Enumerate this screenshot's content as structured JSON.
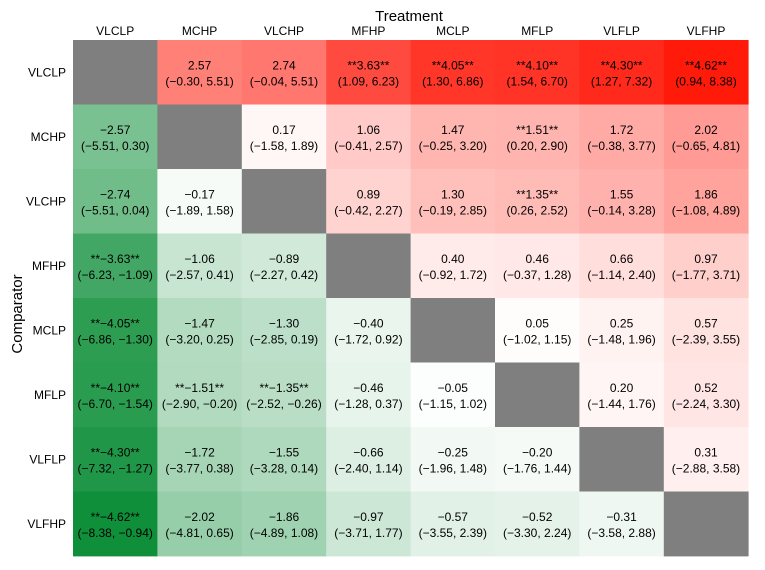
{
  "chart_data": {
    "type": "heatmap",
    "xlabel": "Treatment",
    "ylabel": "Comparator",
    "columns": [
      "VLCLP",
      "MCHP",
      "VLCHP",
      "MFHP",
      "MCLP",
      "MFLP",
      "VLFLP",
      "VLFHP"
    ],
    "rows": [
      "VLCLP",
      "MCHP",
      "VLCHP",
      "MFHP",
      "MCLP",
      "MFLP",
      "VLFLP",
      "VLFHP"
    ],
    "colors": {
      "positive": "#ff1a0a",
      "negative": "#0f8f3a",
      "diagonal": "#7f7f7f",
      "neutral": "#ffffff"
    },
    "color_scale_max": 4.62,
    "cells": [
      [
        null,
        {
          "value": "2.57",
          "ci": "(−0.30, 5.51)"
        },
        {
          "value": "2.74",
          "ci": "(−0.04, 5.51)"
        },
        {
          "value": "**3.63**",
          "ci": "(1.09, 6.23)"
        },
        {
          "value": "**4.05**",
          "ci": "(1.30, 6.86)"
        },
        {
          "value": "**4.10**",
          "ci": "(1.54, 6.70)"
        },
        {
          "value": "**4.30**",
          "ci": "(1.27, 7.32)"
        },
        {
          "value": "**4.62**",
          "ci": "(0.94, 8.38)"
        }
      ],
      [
        {
          "value": "−2.57",
          "ci": "(−5.51, 0.30)"
        },
        null,
        {
          "value": "0.17",
          "ci": "(−1.58, 1.89)"
        },
        {
          "value": "1.06",
          "ci": "(−0.41, 2.57)"
        },
        {
          "value": "1.47",
          "ci": "(−0.25, 3.20)"
        },
        {
          "value": "**1.51**",
          "ci": "(0.20, 2.90)"
        },
        {
          "value": "1.72",
          "ci": "(−0.38, 3.77)"
        },
        {
          "value": "2.02",
          "ci": "(−0.65, 4.81)"
        }
      ],
      [
        {
          "value": "−2.74",
          "ci": "(−5.51, 0.04)"
        },
        {
          "value": "−0.17",
          "ci": "(−1.89, 1.58)"
        },
        null,
        {
          "value": "0.89",
          "ci": "(−0.42, 2.27)"
        },
        {
          "value": "1.30",
          "ci": "(−0.19, 2.85)"
        },
        {
          "value": "**1.35**",
          "ci": "(0.26, 2.52)"
        },
        {
          "value": "1.55",
          "ci": "(−0.14, 3.28)"
        },
        {
          "value": "1.86",
          "ci": "(−1.08, 4.89)"
        }
      ],
      [
        {
          "value": "**−3.63**",
          "ci": "(−6.23, −1.09)"
        },
        {
          "value": "−1.06",
          "ci": "(−2.57, 0.41)"
        },
        {
          "value": "−0.89",
          "ci": "(−2.27, 0.42)"
        },
        null,
        {
          "value": "0.40",
          "ci": "(−0.92, 1.72)"
        },
        {
          "value": "0.46",
          "ci": "(−0.37, 1.28)"
        },
        {
          "value": "0.66",
          "ci": "(−1.14, 2.40)"
        },
        {
          "value": "0.97",
          "ci": "(−1.77, 3.71)"
        }
      ],
      [
        {
          "value": "**−4.05**",
          "ci": "(−6.86, −1.30)"
        },
        {
          "value": "−1.47",
          "ci": "(−3.20, 0.25)"
        },
        {
          "value": "−1.30",
          "ci": "(−2.85, 0.19)"
        },
        {
          "value": "−0.40",
          "ci": "(−1.72, 0.92)"
        },
        null,
        {
          "value": "0.05",
          "ci": "(−1.02, 1.15)"
        },
        {
          "value": "0.25",
          "ci": "(−1.48, 1.96)"
        },
        {
          "value": "0.57",
          "ci": "(−2.39, 3.55)"
        }
      ],
      [
        {
          "value": "**−4.10**",
          "ci": "(−6.70, −1.54)"
        },
        {
          "value": "**−1.51**",
          "ci": "(−2.90, −0.20)"
        },
        {
          "value": "**−1.35**",
          "ci": "(−2.52, −0.26)"
        },
        {
          "value": "−0.46",
          "ci": "(−1.28, 0.37)"
        },
        {
          "value": "−0.05",
          "ci": "(−1.15, 1.02)"
        },
        null,
        {
          "value": "0.20",
          "ci": "(−1.44, 1.76)"
        },
        {
          "value": "0.52",
          "ci": "(−2.24, 3.30)"
        }
      ],
      [
        {
          "value": "**−4.30**",
          "ci": "(−7.32, −1.27)"
        },
        {
          "value": "−1.72",
          "ci": "(−3.77, 0.38)"
        },
        {
          "value": "−1.55",
          "ci": "(−3.28, 0.14)"
        },
        {
          "value": "−0.66",
          "ci": "(−2.40, 1.14)"
        },
        {
          "value": "−0.25",
          "ci": "(−1.96, 1.48)"
        },
        {
          "value": "−0.20",
          "ci": "(−1.76, 1.44)"
        },
        null,
        {
          "value": "0.31",
          "ci": "(−2.88, 3.58)"
        }
      ],
      [
        {
          "value": "**−4.62**",
          "ci": "(−8.38, −0.94)"
        },
        {
          "value": "−2.02",
          "ci": "(−4.81, 0.65)"
        },
        {
          "value": "−1.86",
          "ci": "(−4.89, 1.08)"
        },
        {
          "value": "−0.97",
          "ci": "(−3.71, 1.77)"
        },
        {
          "value": "−0.57",
          "ci": "(−3.55, 2.39)"
        },
        {
          "value": "−0.52",
          "ci": "(−3.30, 2.24)"
        },
        {
          "value": "−0.31",
          "ci": "(−3.58, 2.88)"
        },
        null
      ]
    ]
  }
}
